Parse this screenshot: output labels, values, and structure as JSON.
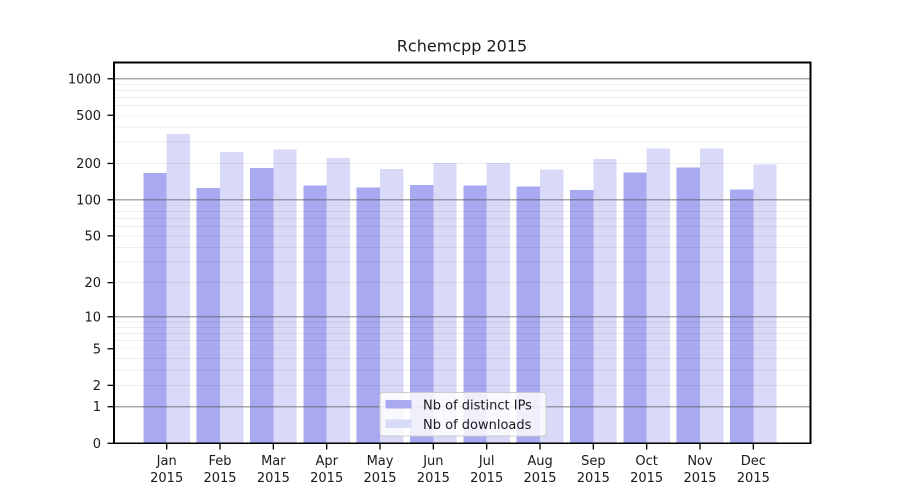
{
  "chart_data": {
    "type": "bar",
    "title": "Rchemcpp 2015",
    "categories": [
      "Jan 2015",
      "Feb 2015",
      "Mar 2015",
      "Apr 2015",
      "May 2015",
      "Jun 2015",
      "Jul 2015",
      "Aug 2015",
      "Sep 2015",
      "Oct 2015",
      "Nov 2015",
      "Dec 2015"
    ],
    "series": [
      {
        "name": "Nb of distinct IPs",
        "color": "#a9a9f1",
        "values": [
          167,
          125,
          184,
          132,
          127,
          133,
          132,
          129,
          121,
          168,
          186,
          122
        ]
      },
      {
        "name": "Nb of downloads",
        "color": "#d9d9f8",
        "values": [
          350,
          248,
          262,
          221,
          180,
          202,
          201,
          179,
          218,
          265,
          266,
          196
        ]
      }
    ],
    "xlabel": "",
    "ylabel": "",
    "yscale": "log1p",
    "ylim": [
      0,
      1000
    ],
    "yticks": [
      0,
      1,
      2,
      5,
      10,
      20,
      50,
      100,
      200,
      500,
      1000
    ],
    "grid": true,
    "legend_position": "lower center",
    "axis_color": "#000000",
    "major_grid_color": "#b3b3b3",
    "minor_grid_color": "#ededed"
  }
}
